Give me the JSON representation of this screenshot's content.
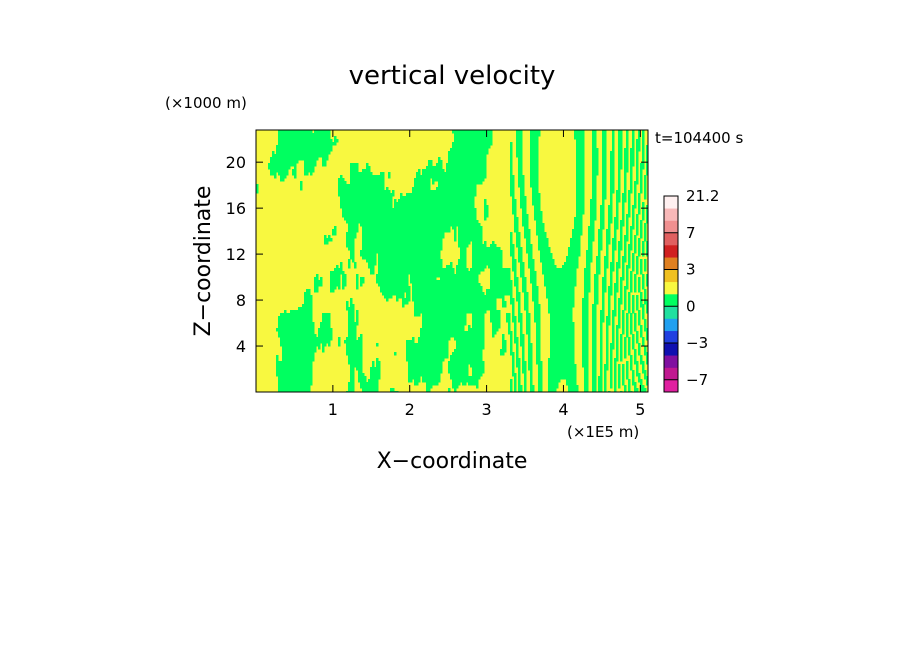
{
  "chart_data": {
    "type": "heatmap",
    "title": "vertical velocity",
    "xlabel": "X−coordinate",
    "ylabel": "Z−coordinate",
    "x_unit": "(×1E5 m)",
    "y_unit": "(×1000 m)",
    "time_label": "t=104400 s",
    "x_ticks": [
      "1",
      "2",
      "3",
      "4",
      "5"
    ],
    "y_ticks": [
      "4",
      "8",
      "12",
      "16",
      "20"
    ],
    "xlim": [
      0,
      5.1
    ],
    "ylim": [
      0,
      22.8
    ],
    "colorbar": {
      "tick_labels": [
        "21.2",
        "7",
        "3",
        "0",
        "−3",
        "−7"
      ],
      "tick_values": [
        21.2,
        7,
        3,
        0,
        -3,
        -7
      ],
      "levels": [
        {
          "min": -10,
          "max": -7,
          "color": "#e020a0"
        },
        {
          "min": -7,
          "max": -5,
          "color": "#c01890"
        },
        {
          "min": -5,
          "max": -4,
          "color": "#8010a0"
        },
        {
          "min": -4,
          "max": -3,
          "color": "#1010b0"
        },
        {
          "min": -3,
          "max": -2,
          "color": "#2040e0"
        },
        {
          "min": -2,
          "max": -1,
          "color": "#20a0f0"
        },
        {
          "min": -1,
          "max": 0,
          "color": "#20e0a0"
        },
        {
          "min": 0,
          "max": 1,
          "color": "#00ff60"
        },
        {
          "min": 1,
          "max": 2,
          "color": "#f8f840"
        },
        {
          "min": 2,
          "max": 3,
          "color": "#f0c020"
        },
        {
          "min": 3,
          "max": 4,
          "color": "#e08020"
        },
        {
          "min": 4,
          "max": 5,
          "color": "#d02020"
        },
        {
          "min": 5,
          "max": 7,
          "color": "#e06060"
        },
        {
          "min": 7,
          "max": 10,
          "color": "#f09090"
        },
        {
          "min": 10,
          "max": 14,
          "color": "#f8b8b8"
        },
        {
          "min": 14,
          "max": 21.2,
          "color": "#fff0f0"
        }
      ]
    },
    "field_colors": {
      "low": "#00ff60",
      "high": "#f8f840"
    },
    "grid": false
  }
}
